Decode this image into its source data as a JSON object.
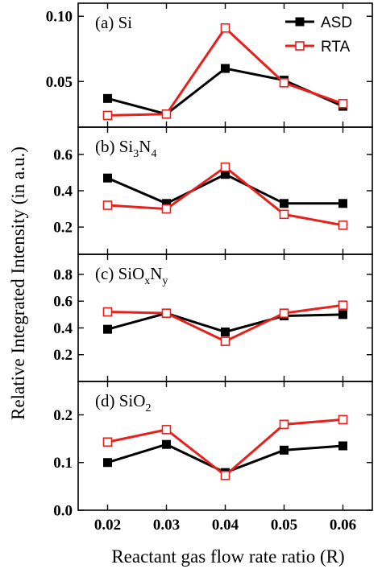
{
  "chart_data": {
    "type": "line",
    "xlabel": "Reactant gas flow rate ratio (R)",
    "ylabel": "Relative Integrated Intensity (in a.u.)",
    "x": [
      0.02,
      0.03,
      0.04,
      0.05,
      0.06
    ],
    "x_tick_labels": [
      "0.02",
      "0.03",
      "0.04",
      "0.05",
      "0.06"
    ],
    "legend": {
      "placement": "top-right of first panel",
      "entries": [
        {
          "name": "ASD",
          "color": "#000000",
          "marker": "filled-square"
        },
        {
          "name": "RTA",
          "color": "#e8201c",
          "marker": "open-square"
        }
      ]
    },
    "panels": [
      {
        "id": "a",
        "label_prefix": "(a) ",
        "label_parts": [
          {
            "t": "Si",
            "s": "n"
          }
        ],
        "ylim": [
          0.015,
          0.11
        ],
        "yticks": [
          0.05,
          0.1
        ],
        "ytick_labels": [
          "0.05",
          "0.10"
        ],
        "series": [
          {
            "name": "ASD",
            "values": [
              0.037,
              0.025,
              0.06,
              0.051,
              0.031
            ]
          },
          {
            "name": "RTA",
            "values": [
              0.024,
              0.025,
              0.091,
              0.049,
              0.033
            ]
          }
        ]
      },
      {
        "id": "b",
        "label_prefix": "(b) ",
        "label_parts": [
          {
            "t": "Si",
            "s": "n"
          },
          {
            "t": "3",
            "s": "sub"
          },
          {
            "t": "N",
            "s": "n"
          },
          {
            "t": "4",
            "s": "sub"
          }
        ],
        "ylim": [
          0.05,
          0.75
        ],
        "yticks": [
          0.2,
          0.4,
          0.6
        ],
        "ytick_labels": [
          "0.2",
          "0.4",
          "0.6"
        ],
        "series": [
          {
            "name": "ASD",
            "values": [
              0.47,
              0.33,
              0.49,
              0.33,
              0.33
            ]
          },
          {
            "name": "RTA",
            "values": [
              0.32,
              0.3,
              0.53,
              0.27,
              0.21
            ]
          }
        ]
      },
      {
        "id": "c",
        "label_prefix": "(c) ",
        "label_parts": [
          {
            "t": "SiO",
            "s": "n"
          },
          {
            "t": "x",
            "s": "sub"
          },
          {
            "t": "N",
            "s": "n"
          },
          {
            "t": "y",
            "s": "sub"
          }
        ],
        "ylim": [
          0.0,
          0.95
        ],
        "yticks": [
          0.2,
          0.4,
          0.6,
          0.8
        ],
        "ytick_labels": [
          "0.2",
          "0.4",
          "0.6",
          "0.8"
        ],
        "series": [
          {
            "name": "ASD",
            "values": [
              0.39,
              0.51,
              0.37,
              0.49,
              0.5
            ]
          },
          {
            "name": "RTA",
            "values": [
              0.52,
              0.51,
              0.3,
              0.51,
              0.57
            ]
          }
        ]
      },
      {
        "id": "d",
        "label_prefix": "(d) ",
        "label_parts": [
          {
            "t": "SiO",
            "s": "n"
          },
          {
            "t": "2",
            "s": "sub"
          }
        ],
        "ylim": [
          0.0,
          0.27
        ],
        "yticks": [
          0.0,
          0.1,
          0.2
        ],
        "ytick_labels": [
          "0.0",
          "0.1",
          "0.2"
        ],
        "series": [
          {
            "name": "ASD",
            "values": [
              0.1,
              0.138,
              0.079,
              0.126,
              0.135
            ]
          },
          {
            "name": "RTA",
            "values": [
              0.143,
              0.169,
              0.073,
              0.18,
              0.19
            ]
          }
        ]
      }
    ]
  }
}
